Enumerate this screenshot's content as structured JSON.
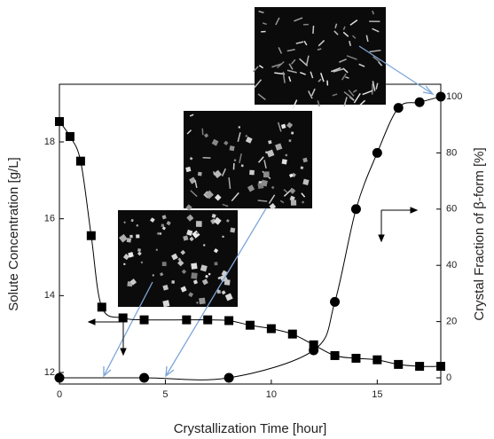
{
  "chart_data": {
    "type": "line",
    "xlabel": "Crystallization Time [hour]",
    "ylabel": "Solute Concentration [g/L]",
    "y2label": "Crystal Fraction of β-form [%]",
    "xlim": [
      0,
      18
    ],
    "xticks": [
      0,
      5,
      10,
      15
    ],
    "ylim": [
      11.7,
      19.5
    ],
    "yticks": [
      12,
      14,
      16,
      18
    ],
    "y2lim": [
      -2.2,
      104.4
    ],
    "y2ticks": [
      0,
      20,
      40,
      60,
      80,
      100
    ],
    "series": [
      {
        "name": "Solute Concentration",
        "color": "#000000",
        "marker": "square",
        "x": [
          0,
          0.5,
          1,
          1.5,
          2,
          3,
          4,
          6,
          7,
          8,
          9,
          10,
          11,
          12,
          13,
          14,
          15,
          16,
          17,
          18
        ],
        "values": [
          18.53,
          18.14,
          17.5,
          15.56,
          13.7,
          13.42,
          13.37,
          13.37,
          13.37,
          13.35,
          13.23,
          13.14,
          13.0,
          12.72,
          12.44,
          12.37,
          12.33,
          12.21,
          12.16,
          12.16
        ]
      },
      {
        "name": "Crystal Fraction of β-form",
        "color": "#000000",
        "marker": "circle",
        "axis": "y2",
        "x": [
          0,
          4,
          8,
          12,
          13,
          14,
          15,
          16,
          17,
          18
        ],
        "values": [
          0,
          0,
          0,
          9.8,
          27,
          60,
          80,
          96,
          98,
          100
        ]
      }
    ]
  }
}
